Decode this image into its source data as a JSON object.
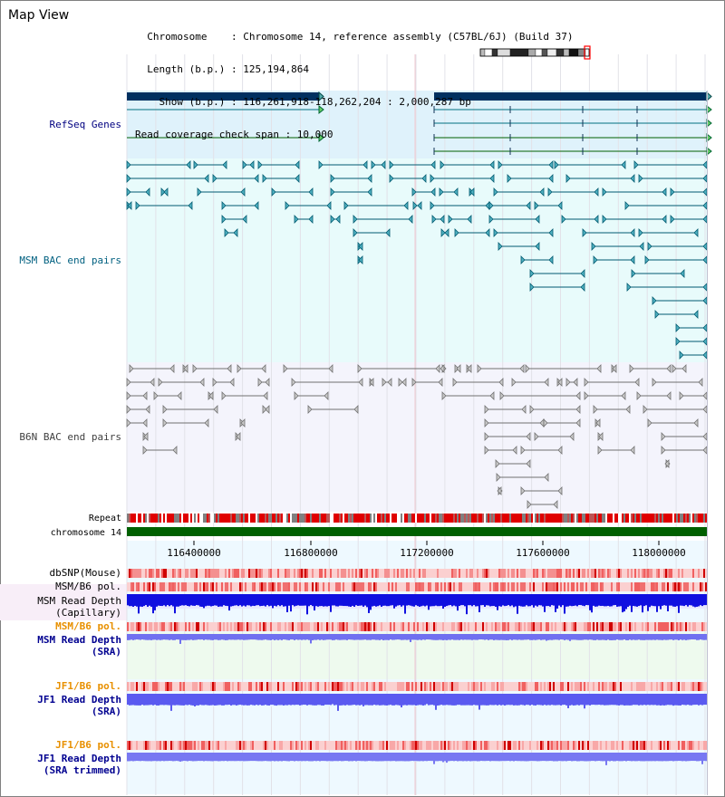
{
  "header": {
    "view_title": "Map View",
    "info_lines": [
      "  Chromosome    : Chromosome 14, reference assembly (C57BL/6J) (Build 37)",
      "  Length (b.p.) : 125,194,864",
      "    Show (b.p.) : 116,261,918-118,262,204 : 2,000,287 bp",
      "Read coverage check span : 10,000"
    ]
  },
  "colors": {
    "refseq_bg": "#dff2fb",
    "msm_bac_bg": "#e8fbfb",
    "b6n_bac_bg": "#f4f4fc",
    "track_bg": "#eef9ff",
    "refseq_label": "#000080",
    "msm_label": "#006080",
    "b6n_label": "#404040",
    "gene_bar": "#003060",
    "gene_line_green": "#006000",
    "gene_line_teal": "#007080",
    "msm_pair": "#005a70",
    "b6n_pair": "#707070",
    "chrom_green": "#006000",
    "repeat_red": "#e00000",
    "repeat_gray": "#808080",
    "depth_blue": "#1010e0",
    "depth_light": "#7070f0",
    "pol_red": "#ff4040",
    "pol_orange_label": "#e89000",
    "dark_blue_label": "#000090"
  },
  "ideogram": {
    "icon": "chromosome-ideogram-icon",
    "highlight": "#ff0000"
  },
  "tracks": {
    "refseq": {
      "label": "RefSeq Genes"
    },
    "msm_bac": {
      "label": "MSM BAC end pairs"
    },
    "b6n_bac": {
      "label": "B6N BAC end pairs"
    },
    "repeat": {
      "label": "Repeat"
    },
    "chromosome": {
      "label": "chromosome 14"
    },
    "ruler": {
      "ticks": [
        "116400000",
        "116800000",
        "117200000",
        "117600000",
        "118000000"
      ]
    },
    "dbsnp": {
      "label": "dbSNP(Mouse)"
    },
    "msm_b6_pol_1": {
      "label": "MSM/B6 pol."
    },
    "msm_capillary": {
      "label_lines": [
        "MSM Read Depth",
        "(Capillary)"
      ]
    },
    "msm_b6_pol_2": {
      "label": "MSM/B6 pol."
    },
    "msm_sra": {
      "label_lines": [
        "MSM Read Depth",
        "(SRA)"
      ]
    },
    "jf1_b6_pol_1": {
      "label": "JF1/B6 pol."
    },
    "jf1_sra": {
      "label_lines": [
        "JF1 Read Depth",
        "(SRA)"
      ]
    },
    "jf1_b6_pol_2": {
      "label": "JF1/B6 pol."
    },
    "jf1_trimmed": {
      "label_lines": [
        "JF1 Read Depth",
        "(SRA trimmed)"
      ]
    }
  }
}
